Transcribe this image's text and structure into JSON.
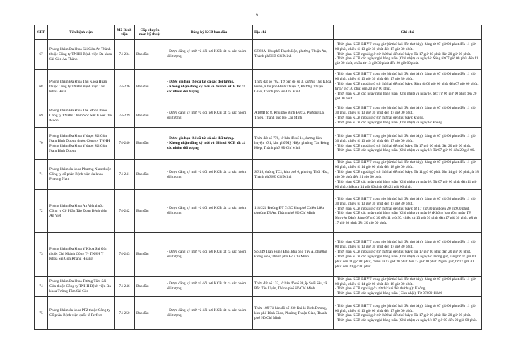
{
  "page_number": "9",
  "headers": [
    "STT",
    "Tên Bệnh viện",
    "Mã Bệnh viện",
    "Cấp chuyên môn kỹ thuật",
    "Đăng ký KCB ban đầu",
    "Địa chỉ",
    "Ghi chú"
  ],
  "rows": [
    {
      "stt": "67",
      "name": "Phòng khám Đa khoa Sài Gòn An Thành thuộc Công ty TNHH Bệnh viện Đa khoa Sài Gòn An Thành",
      "code": "74-234",
      "level": "Ban đầu",
      "reg_bold": false,
      "registration": [
        "- Được đăng ký mới và đổi nơi KCB tất cả các nhóm đối tượng."
      ],
      "address": "Số 69A, khu phố Thạnh Lộc, phường Thuận An, Thành phố Hồ Chí Minh",
      "notes": [
        "- Thời gian KCB BHYT trong giờ (từ thứ hai đến thứ bảy): Sáng từ 07 giờ 00 phút đến 11 giờ 00 phút, chiều từ 13 giờ 30 phút đến 17 giờ 30 phút.",
        "- Thời gian KCB ngoài giờ (từ thứ hai đến thứ bảy): Từ 17 giờ 30 phút đến 20 giờ 00 phút.",
        "- Thời gian KCB các ngày nghỉ hàng tuần (Chủ nhật) và ngày lễ: Sáng từ 07 giờ 00 phút đến 11 giờ 00 phút, chiều từ 13 giờ 30 phút đến 20 giờ 00 phút."
      ]
    },
    {
      "stt": "68",
      "name": "Phòng khám Đa khoa Thủ Khoa Huân thuộc Công ty TNHH Bệnh viện Thủ Khoa Huân",
      "code": "74-236",
      "level": "Ban đầu",
      "reg_bold": true,
      "registration": [
        "- Được gia hạn thẻ cũ tất cả các đối tượng.",
        "- Không nhận đăng ký mới và đổi nơi KCB tất cả các nhóm đối tượng."
      ],
      "address": "Thửa đất số 702, Tờ bản đồ số 3, Đường Thủ Khoa Huân, Khu phố Bình Thuận 2, Phường Thuận Giao, Thành phố Hồ Chí Minh",
      "notes": [
        "- Thời gian KCB BHYT trong giờ (từ thứ hai đến thứ bảy): Sáng từ 07 giờ 00 phút đến 11 giờ 00 phút, chiều từ 13 giờ 30 phút đến 17 giờ 30 phút.",
        "- Thời gian KCB ngoài giờ (từ thứ hai đến thứ bảy): Sáng từ 06 giờ 00 phút đến 07 giờ 00 phút, từ 17 giờ 30 phút đến 20 giờ 00 phút.",
        "- Thời gian KCB các ngày nghỉ hàng tuần (Chủ nhật) và ngày lễ, tết: Từ 06 giờ 00 phút đến 20 giờ 00 phút."
      ]
    },
    {
      "stt": "69",
      "name": "Phòng khám Đa khoa The Moon thuộc Công ty TNHH Chăm Sóc Sức Khỏe The Moon",
      "code": "74-239",
      "level": "Ban đầu",
      "reg_bold": false,
      "registration": [
        "- Được đăng ký mới và đổi nơi KCB tất cả các nhóm đối tượng."
      ],
      "address": "A188B tổ 8, Khu phố Bình Đức 2, Phường Lái Thiêu, Thành phố Hồ Chí Minh",
      "notes": [
        "- Thời gian KCB BHYT trong giờ (từ thứ hai đến thứ bảy): Sáng từ 07 giờ 00 phút đến 11 giờ 30 phút, chiều từ 13 giờ 30 phút đến 17 giờ 00 phút.",
        "- Thời gian KCB ngoài giờ (từ thứ hai đến thứ bảy): không.",
        "- Thời gian KCB các ngày nghỉ hàng tuần (Chủ nhật) và ngày lễ: không."
      ]
    },
    {
      "stt": "70",
      "name": "Phòng khám Đa khoa Y dược Sài Gòn Nam Bình Dương thuộc Công ty TNHH Phòng khám Đa khoa Y dược Sài Gòn Nam Bình Dương",
      "code": "74-240",
      "level": "Ban đầu",
      "reg_bold": true,
      "registration": [
        "- Được gia hạn thẻ cũ tất cả các đối tượng.",
        "- Không nhận đăng ký mới và đổi nơi KCB tất cả các nhóm đối tượng."
      ],
      "address": "Thửa đất số 776, tờ bản đồ số 14, đường liên huyện, tổ 1, khu phố Mỹ Hiệp, phường Tân Đông Hiệp, Thành phố Hồ Chí Minh",
      "notes": [
        "- Thời gian KCB BHYT trong giờ (từ thứ hai đến thứ bảy): Sáng từ 07 giờ 00 phút đến 11 giờ 30 phút, chiều từ 13 giờ 30 phút đến 17 giờ 00 phút.",
        "- Thời gian KCB ngoài giờ (từ thứ hai đến thứ bảy): Từ 17 giờ 00 phút đến 20 giờ 00 phút.",
        "- Thời gian KCB các ngày nghỉ hàng tuần (Chủ nhật) và ngày lễ: Từ 07 giờ 00 đến 20 giờ 00."
      ]
    },
    {
      "stt": "71",
      "name": "Phòng khám đa khoa Phương Nam thuộc Công ty cổ phần Bệnh viện đa khoa Phương Nam",
      "code": "74-241",
      "level": "Ban đầu",
      "reg_bold": false,
      "registration": [
        "- Được đăng ký mới và đổi nơi KCB tất cả các nhóm đối tượng."
      ],
      "address": "Số 18, đường TC1, khu phố 6, phường Thới Hòa, Thành phố Hồ Chí Minh",
      "notes": [
        "- Thời gian KCB BHYT trong giờ (từ thứ hai đến thứ bảy): Sáng từ 07 giờ 00 phút đến 11 giờ 00 phút, chiều từ 14 giờ 00 phút đến 18 giờ 00 phút.",
        "- Thời gian KCB ngoài giờ (từ thứ hai đến thứ bảy): Từ 11 giờ 00 phút đến 14 giờ 00 phút,từ 18 giờ 00 phút đến 21 giờ 00 phút",
        "- Thời gian KCB các ngày nghỉ hàng tuần (Chủ nhật) và ngày lễ: Từ 07 giờ 00 phút đến 11 giờ 00 phút,chiều từ 14 giờ 00 phút đến 21 giờ 00 phút."
      ]
    },
    {
      "stt": "72",
      "name": "Phòng khám Đa khoa An Việt thuộc Công ty Cổ Phần Tập Đoàn Bệnh viện An Việt",
      "code": "74-242",
      "level": "Ban đầu",
      "reg_bold": false,
      "registration": [
        "- Được đăng ký mới và đổi nơi KCB tất cả các nhóm đối tượng."
      ],
      "address": "118/22b Đường ĐT 743C khu phố Chiêu Liêu, phường Dĩ An, Thành phố Hồ Chí Minh",
      "notes": [
        "- Thời gian KCB BHYT trong giờ (từ thứ hai đến thứ bảy): Sáng từ 07 giờ 30 phút đến 11 giờ 30 phút, chiều từ 13 giờ 30 phút đến 17 giờ 30 phút.",
        "- Thời gian KCB ngoài giờ (từ thứ hai đến thứ bảy): từ 17 giờ 30 phút đến 20 giờ 00 phút.",
        "- Thời gian KCB các ngày nghỉ hàng tuần (Chủ nhật) và ngày lễ (Không bao gồm ngày Tết Nguyên Đán): Sáng 07 giờ 30 đến 11 giờ 30, chiều từ 13 giờ 30 phút đến 17 giờ 30 phút, tối từ 17 giờ 30 phút đến 20 giờ 00 phút."
      ]
    },
    {
      "stt": "73",
      "name": "Phòng khám Đa khoa Y Khoa Sài Gòn thuộc Chi Nhánh Công Ty TNHH Y Khoa Sài Gòn Khang Hoàng",
      "code": "74-243",
      "level": "Ban đầu",
      "reg_bold": false,
      "registration": [
        "- Được đăng ký mới và đổi nơi KCB tất cả các nhóm đối tượng."
      ],
      "address": "Số 349 Trần Hưng Đạo, khu phố Tây A, phường Đông Hòa, Thành phố Hồ Chí Minh",
      "notes": [
        "- Thời gian KCB BHYT trong giờ (từ thứ hai đến thứ bảy): Sáng từ 07 giờ 00 phút đến 11 giờ 00 phút, chiều từ 13 giờ 30 phút đến 17 giờ 30 phút.",
        "- Thời gian KCB ngoài giờ (từ thứ hai đến thứ bảy): Từ 17 giờ 30 phút đến 20 giờ 00 phút.",
        "- Thời gian KCB các ngày nghỉ hàng tuần (Chủ nhật) và ngày lễ: Trong giờ, sáng từ 07 giờ 00 phút đến 11 giờ 00 phút, chiều từ 13 giờ 30 phút đến 17 giờ 30 phút. Ngoài giờ, từ 17 giờ 30 phút đến 20 giờ 00 phút."
      ]
    },
    {
      "stt": "74",
      "name": "Phòng khám Đa khoa Tường Tâm Sài Gòn thuộc Công ty TNHH Bệnh viện Đa khoa Tường Tâm Sài Gòn",
      "code": "74-246",
      "level": "Ban đầu",
      "reg_bold": false,
      "registration": [
        "- Được đăng ký mới và đổi nơi KCB tất cả các nhóm đối tượng."
      ],
      "address": "Thửa đất số 132, tờ bản đồ số 38,ấp Suối Sâu,xã Bắc Tân Uyên, Thành phố Hồ Chí Minh",
      "notes": [
        "- Thời gian KCB BHYT trong giờ (từ thứ hai đến thứ bảy): Sáng từ 07 giờ 00 phút đến 11 giờ 00 phút, chiều từ 14 giờ 00 phút đến 18 giờ 00 phút.",
        "- Thời gian KCB ngoài giờ ( từ thứ hai đến thứ bảy): Không.",
        "- Thời gian KCB các ngày nghỉ hàng tuần ( Chủ nhật): Từ 07h00-11h00"
      ]
    },
    {
      "stt": "75",
      "name": "Phòng khám đa khoa PF2 thuộc Công ty Cổ phần Bệnh viện quốc tế Perfect",
      "code": "74-250",
      "level": "Ban đầu",
      "reg_bold": false,
      "registration": [
        "- Được đăng ký mới và đổi nơi KCB tất cả các nhóm đối tượng."
      ],
      "address": "Thửa 189 Tờ bản đồ số 230 Đại lộ Bình Dương, khu phố Bình Giao, Phường Thuận Giao, Thành phố Hồ Chí Minh",
      "notes": [
        "- Thời gian KCB BHYT trong giờ (từ thứ hai đến thứ bảy): Sáng từ 07 giờ 00 phút đến 11 giờ 00 phút, chiều từ 13 giờ 00 phút đến 17 giờ 00 phút.",
        "- Thời gian KCB ngoài giờ (từ thứ hai đến thứ bảy): Từ 17 giờ 00 phút đến 20 giờ 00 phút.",
        "- Thời gian KCB các ngày nghỉ hàng tuần (Chủ nhật) và ngày lễ: 07 giờ 00 đến 20 giờ 00 phút."
      ]
    }
  ]
}
